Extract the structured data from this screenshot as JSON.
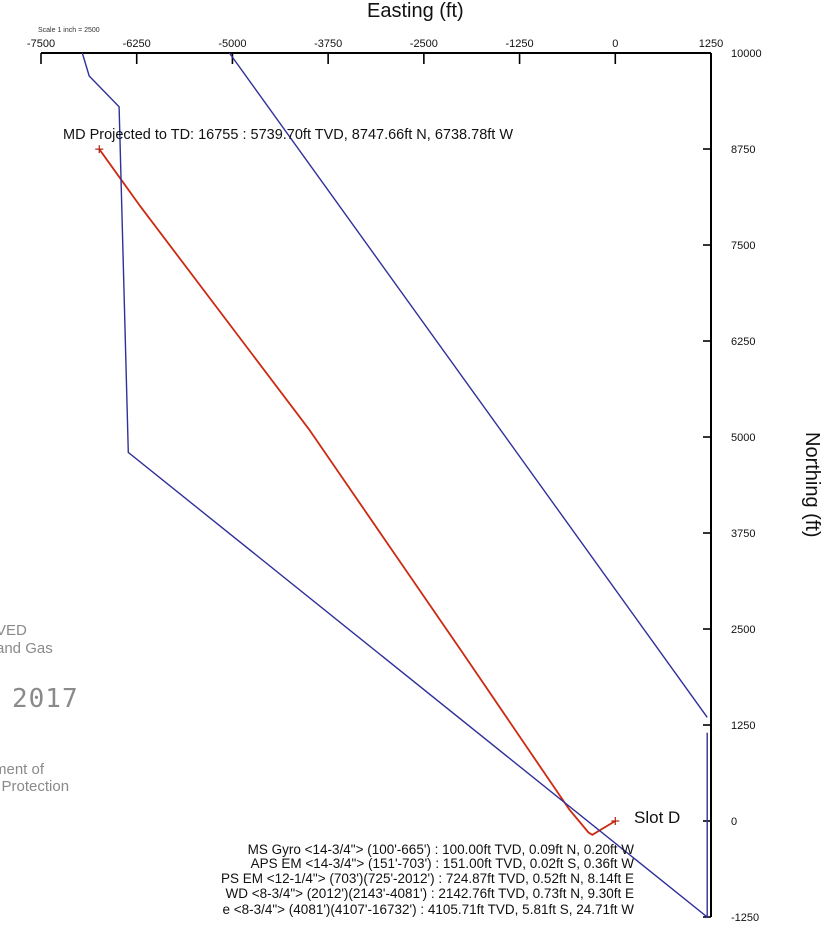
{
  "chart_data": {
    "type": "line",
    "title": "",
    "xlabel": "Easting (ft)",
    "ylabel": "Northing (ft)",
    "scale_note": "Scale 1 inch = 2500",
    "xlim": [
      -7500,
      1250
    ],
    "ylim": [
      -1250,
      10000
    ],
    "x_ticks": [
      -7500,
      -6250,
      -5000,
      -3750,
      -2500,
      -1250,
      0,
      1250
    ],
    "x_tick_labels": [
      "-7500",
      "-6250",
      "-5000",
      "-3750",
      "-2500",
      "-1250",
      "0",
      "1250"
    ],
    "y_ticks": [
      10000,
      8750,
      7500,
      6250,
      5000,
      3750,
      2500,
      1250,
      0,
      -1250
    ],
    "y_tick_labels": [
      "10000",
      "8750",
      "7500",
      "6250",
      "5000",
      "3750",
      "2500",
      "1250",
      "0",
      "-1250"
    ],
    "series": [
      {
        "color": "#cc2a10",
        "role": "well-path",
        "x": [
          0,
          -300,
          -350,
          -600,
          -2000,
          -4000,
          -6200,
          -6739
        ],
        "y": [
          0,
          -180,
          -150,
          150,
          2200,
          5100,
          8000,
          8748
        ]
      },
      {
        "color": "#30309a",
        "role": "lease-boundary",
        "x": [
          -6960,
          -6870,
          -6480,
          -6360,
          1200,
          1200
        ],
        "y": [
          10000,
          9700,
          9300,
          4800,
          -1250,
          1150
        ]
      },
      {
        "color": "#30309a",
        "role": "lease-boundary",
        "x": [
          -5040,
          1200
        ],
        "y": [
          10000,
          1350
        ]
      }
    ],
    "annotations": [
      {
        "text": "MD Projected to TD: 16755 : 5739.70ft TVD, 8747.66ft N, 6738.78ft W",
        "x": -6739,
        "y": 8748
      },
      {
        "text": "Slot D",
        "x": 0,
        "y": 0
      }
    ],
    "survey_notes": [
      "MS Gyro <14-3/4\"> (100'-665') : 100.00ft TVD, 0.09ft N, 0.20ft W",
      "APS EM <14-3/4\"> (151'-703') : 151.00ft TVD, 0.02ft S, 0.36ft W",
      "PS EM <12-1/4\"> (703')(725'-2012') : 724.87ft TVD, 0.52ft N, 8.14ft E",
      "WD <8-3/4\"> (2012')(2143'-4081') : 2142.76ft TVD, 0.73ft N, 9.30ft E",
      "e <8-3/4\"> (4081')(4107'-16732') : 4105.71ft TVD, 5.81ft S, 24.71ft W"
    ],
    "stamp_lines": [
      "VED",
      "and Gas",
      "2017",
      "ment of",
      "l Protection"
    ]
  }
}
